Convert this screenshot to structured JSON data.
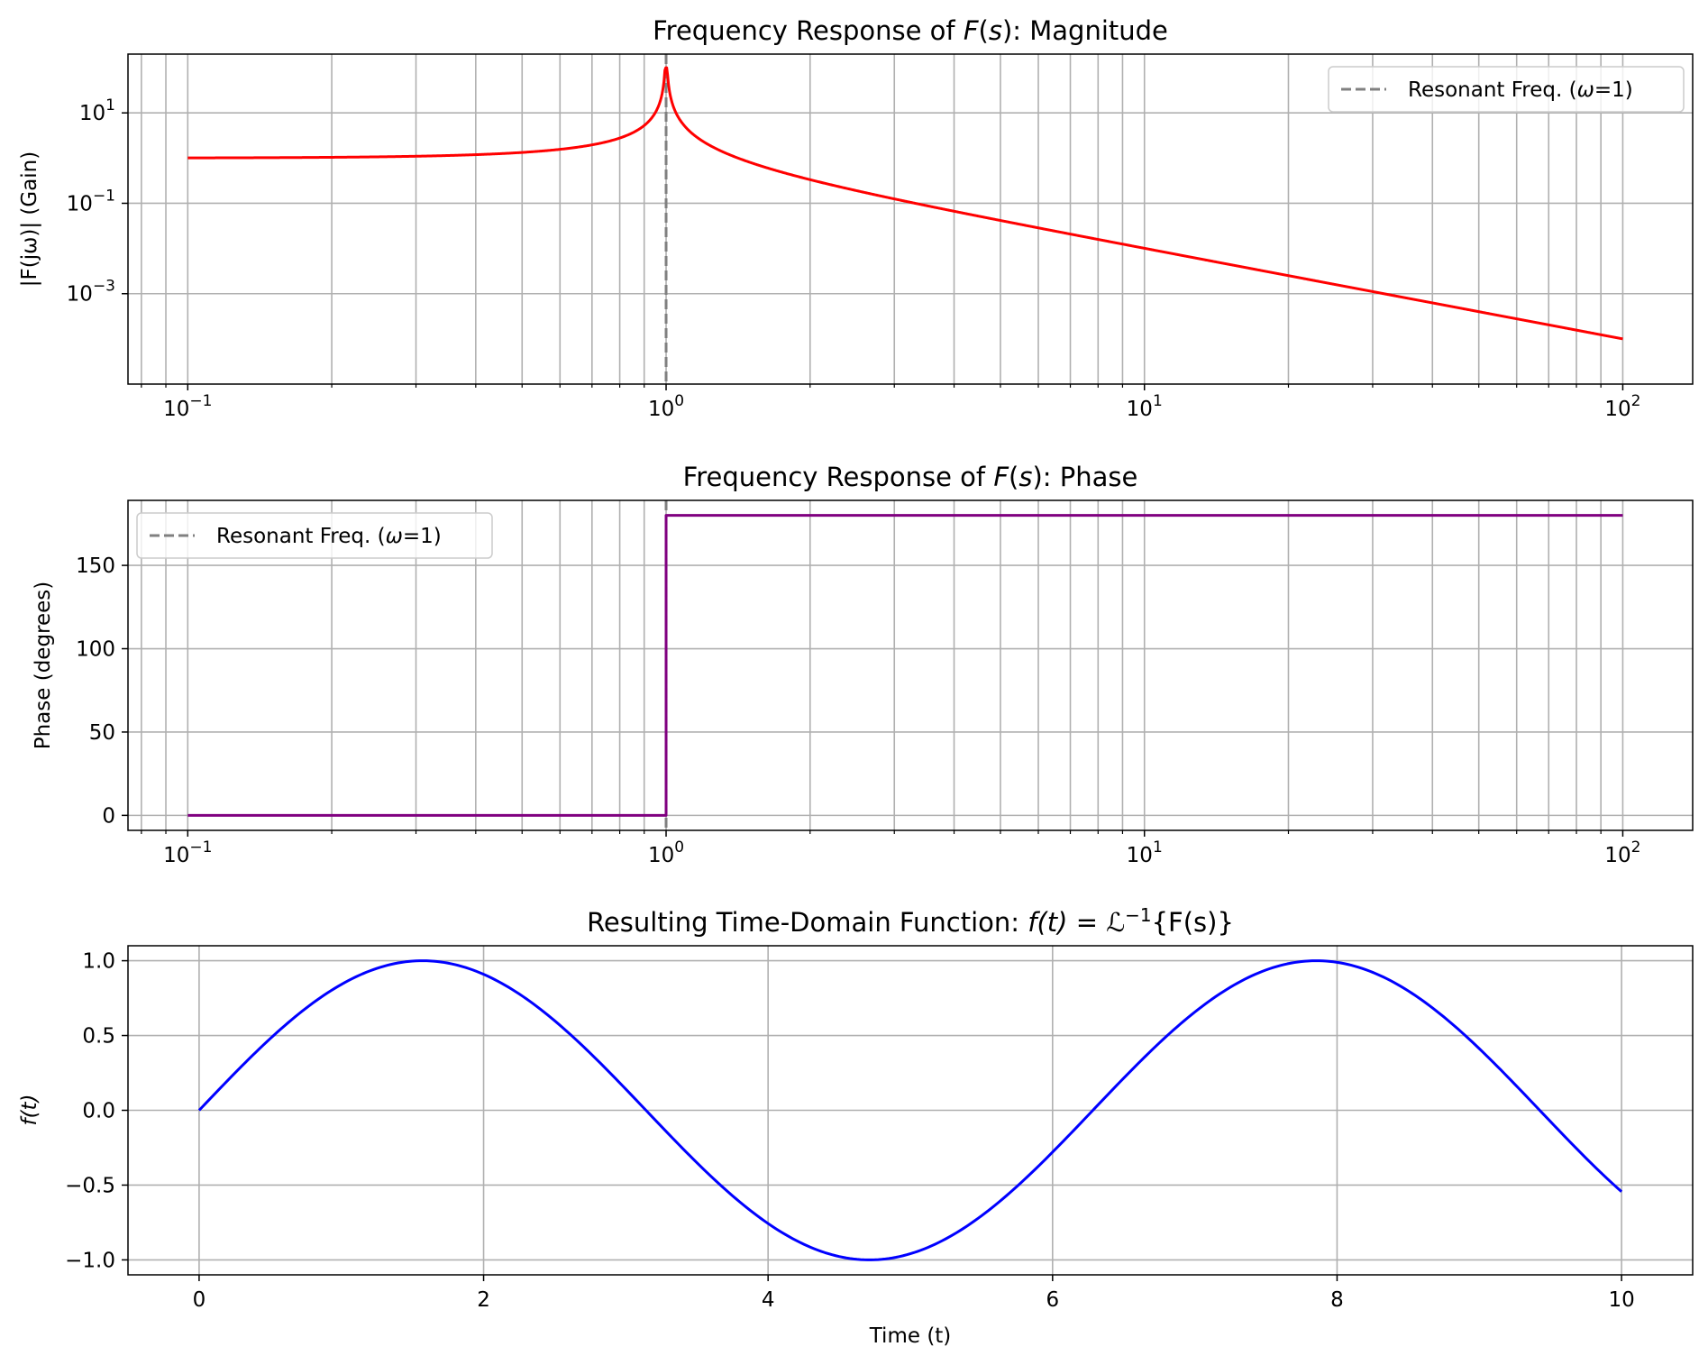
{
  "chart_data": [
    {
      "type": "line",
      "title": {
        "pre": "Frequency Response of ",
        "var": "F",
        "mid": "(",
        "arg": "s",
        "post": "): Magnitude"
      },
      "xlabel": "",
      "ylabel": "|F(jω)| (Gain)",
      "xscale": "log",
      "yscale": "log",
      "xlim": [
        0.075,
        140
      ],
      "ylim": [
        1e-05,
        200
      ],
      "xticks": [
        0.1,
        1,
        10,
        100
      ],
      "xtick_labels": [
        {
          "base": "10",
          "exp": "−1"
        },
        {
          "base": "10",
          "exp": "0"
        },
        {
          "base": "10",
          "exp": "1"
        },
        {
          "base": "10",
          "exp": "2"
        }
      ],
      "yticks": [
        10,
        0.1,
        0.001
      ],
      "ytick_labels": [
        {
          "base": "10",
          "exp": "1"
        },
        {
          "base": "10",
          "exp": "−1"
        },
        {
          "base": "10",
          "exp": "−3"
        }
      ],
      "grid": "both-major-minor",
      "series": [
        {
          "function": "|1/(1-ω²)|",
          "x_range": [
            0.1,
            100
          ],
          "peak_cap": 100,
          "color": "#ff0000"
        }
      ],
      "vline": {
        "x": 1,
        "color": "#808080",
        "style": "dashed"
      },
      "legend": {
        "position": "upper right",
        "label_pre": "Resonant Freq. (",
        "label_var": "ω",
        "label_post": "=1)"
      }
    },
    {
      "type": "line",
      "title": {
        "pre": "Frequency Response of ",
        "var": "F",
        "mid": "(",
        "arg": "s",
        "post": "): Phase"
      },
      "xlabel": "",
      "ylabel": "Phase (degrees)",
      "xscale": "log",
      "xlim": [
        0.075,
        140
      ],
      "ylim": [
        -9,
        189
      ],
      "xticks": [
        0.1,
        1,
        10,
        100
      ],
      "xtick_labels": [
        {
          "base": "10",
          "exp": "−1"
        },
        {
          "base": "10",
          "exp": "0"
        },
        {
          "base": "10",
          "exp": "1"
        },
        {
          "base": "10",
          "exp": "2"
        }
      ],
      "yticks": [
        0,
        50,
        100,
        150
      ],
      "ytick_labels": [
        "0",
        "50",
        "100",
        "150"
      ],
      "grid": "both-major-minor",
      "series": [
        {
          "x": [
            0.1,
            1,
            1,
            100
          ],
          "y": [
            0,
            0,
            180,
            180
          ],
          "color": "#800080"
        }
      ],
      "vline": {
        "x": 1,
        "color": "#808080",
        "style": "dashed"
      },
      "legend": {
        "position": "upper left",
        "label_pre": "Resonant Freq. (",
        "label_var": "ω",
        "label_post": "=1)"
      }
    },
    {
      "type": "line",
      "title": {
        "pre": "Resulting Time-Domain Function: ",
        "expr": "f(t) = ℒ",
        "sup": "−1",
        "post": "{F(s)}"
      },
      "xlabel": "Time (t)",
      "ylabel": "f(t)",
      "xlim": [
        -0.5,
        10.5
      ],
      "ylim": [
        -1.1,
        1.1
      ],
      "xticks": [
        0,
        2,
        4,
        6,
        8,
        10
      ],
      "xtick_labels": [
        "0",
        "2",
        "4",
        "6",
        "8",
        "10"
      ],
      "yticks": [
        1,
        0.5,
        0,
        -0.5,
        -1
      ],
      "ytick_labels": [
        "1.0",
        "0.5",
        "0.0",
        "−0.5",
        "−1.0"
      ],
      "grid": "major",
      "series": [
        {
          "function": "sin(t)",
          "x_range": [
            0,
            10
          ],
          "color": "#0000ff"
        }
      ]
    }
  ]
}
